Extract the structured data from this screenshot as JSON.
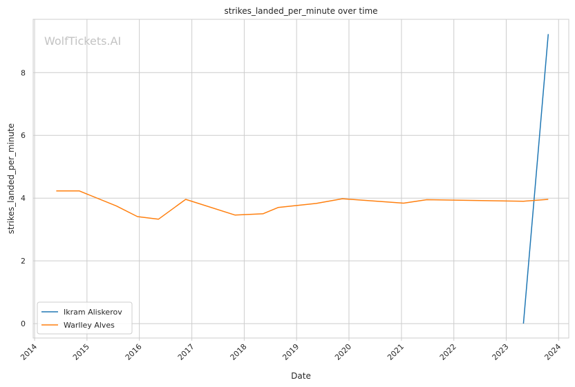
{
  "chart_data": {
    "type": "line",
    "title": "strikes_landed_per_minute over time",
    "xlabel": "Date",
    "ylabel": "strikes_landed_per_minute",
    "watermark": "WolfTickets.AI",
    "x_ticks": [
      "2014",
      "2015",
      "2016",
      "2017",
      "2018",
      "2019",
      "2020",
      "2021",
      "2022",
      "2023",
      "2024"
    ],
    "y_ticks": [
      0,
      2,
      4,
      6,
      8
    ],
    "xlim": [
      "2013-12-22",
      "2024-03-12"
    ],
    "ylim": [
      -0.46,
      9.7
    ],
    "grid": true,
    "legend_position": "lower-left",
    "series": [
      {
        "name": "Ikram Aliskerov",
        "color": "#1f77b4",
        "points": [
          {
            "x": "2023-05-01",
            "y": 0.0
          },
          {
            "x": "2023-10-21",
            "y": 9.23
          }
        ]
      },
      {
        "name": "Warlley Alves",
        "color": "#ff7f0e",
        "points": [
          {
            "x": "2014-06-01",
            "y": 4.23
          },
          {
            "x": "2014-11-08",
            "y": 4.23
          },
          {
            "x": "2015-07-25",
            "y": 3.75
          },
          {
            "x": "2015-12-19",
            "y": 3.41
          },
          {
            "x": "2016-05-14",
            "y": 3.33
          },
          {
            "x": "2016-11-19",
            "y": 3.96
          },
          {
            "x": "2017-10-28",
            "y": 3.46
          },
          {
            "x": "2018-05-12",
            "y": 3.5
          },
          {
            "x": "2018-08-25",
            "y": 3.7
          },
          {
            "x": "2019-05-18",
            "y": 3.83
          },
          {
            "x": "2019-11-16",
            "y": 3.98
          },
          {
            "x": "2021-01-16",
            "y": 3.84
          },
          {
            "x": "2021-06-26",
            "y": 3.95
          },
          {
            "x": "2023-05-01",
            "y": 3.9
          },
          {
            "x": "2023-10-21",
            "y": 3.96
          }
        ]
      }
    ]
  }
}
